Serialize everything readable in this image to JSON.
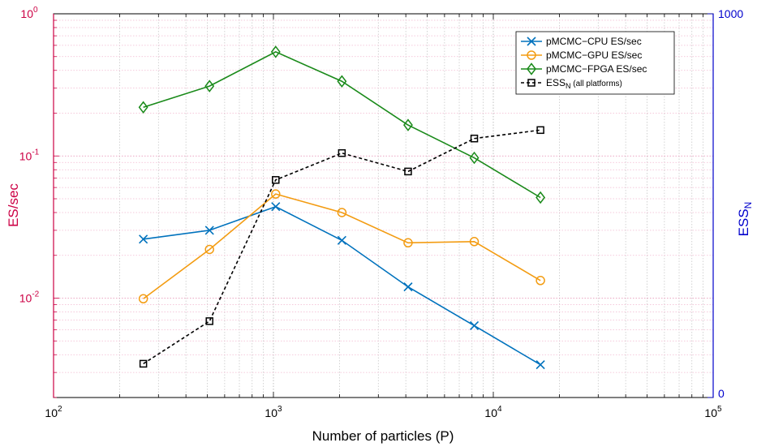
{
  "chart_data": {
    "type": "line",
    "xlabel": "Number of particles (P)",
    "ylabel_left": "ES/sec",
    "ylabel_right_base": "ESS",
    "ylabel_right_sub": "N",
    "x_scale": "log",
    "y_left_scale": "log",
    "y_right_scale": "linear",
    "xlim": [
      100,
      100000
    ],
    "ylim_left": [
      0.002,
      1
    ],
    "ylim_right": [
      0,
      1000
    ],
    "grid": true,
    "legend_position": "top-right",
    "x_ticks": [
      {
        "value": 100,
        "base": "10",
        "exp": "2"
      },
      {
        "value": 1000,
        "base": "10",
        "exp": "3"
      },
      {
        "value": 10000,
        "base": "10",
        "exp": "4"
      },
      {
        "value": 100000,
        "base": "10",
        "exp": "5"
      }
    ],
    "y_left_ticks": [
      {
        "value": 0.01,
        "base": "10",
        "exp": "-2"
      },
      {
        "value": 0.1,
        "base": "10",
        "exp": "-1"
      },
      {
        "value": 1,
        "base": "10",
        "exp": "0"
      }
    ],
    "y_right_ticks": [
      {
        "value": 0,
        "label": "0"
      },
      {
        "value": 1000,
        "label": "1000"
      }
    ],
    "series": [
      {
        "name": "pMCMC−CPU ES/sec",
        "axis": "left",
        "color": "#0072bd",
        "marker": "x",
        "dashed": false,
        "x": [
          256,
          512,
          1024,
          2048,
          4096,
          8192,
          16384
        ],
        "y": [
          0.026,
          0.03,
          0.044,
          0.0255,
          0.012,
          0.0064,
          0.0034
        ]
      },
      {
        "name": "pMCMC−GPU ES/sec",
        "axis": "left",
        "color": "#f39c12",
        "marker": "circle",
        "dashed": false,
        "x": [
          256,
          512,
          1024,
          2048,
          4096,
          8192,
          16384
        ],
        "y": [
          0.0099,
          0.022,
          0.054,
          0.04,
          0.0245,
          0.025,
          0.0133
        ]
      },
      {
        "name": "pMCMC−FPGA ES/sec",
        "axis": "left",
        "color": "#1a8a1a",
        "marker": "diamond",
        "dashed": false,
        "x": [
          256,
          512,
          1024,
          2048,
          4096,
          8192,
          16384
        ],
        "y": [
          0.22,
          0.31,
          0.54,
          0.335,
          0.165,
          0.097,
          0.051
        ]
      },
      {
        "name": "ESS",
        "name_sub": "N",
        "name_suffix": " (all platforms)",
        "axis": "right",
        "color": "#000000",
        "marker": "square",
        "dashed": true,
        "x": [
          256,
          512,
          1024,
          2048,
          4096,
          8192,
          16384
        ],
        "y": [
          88,
          199,
          567,
          637,
          589,
          675,
          697
        ]
      }
    ]
  }
}
